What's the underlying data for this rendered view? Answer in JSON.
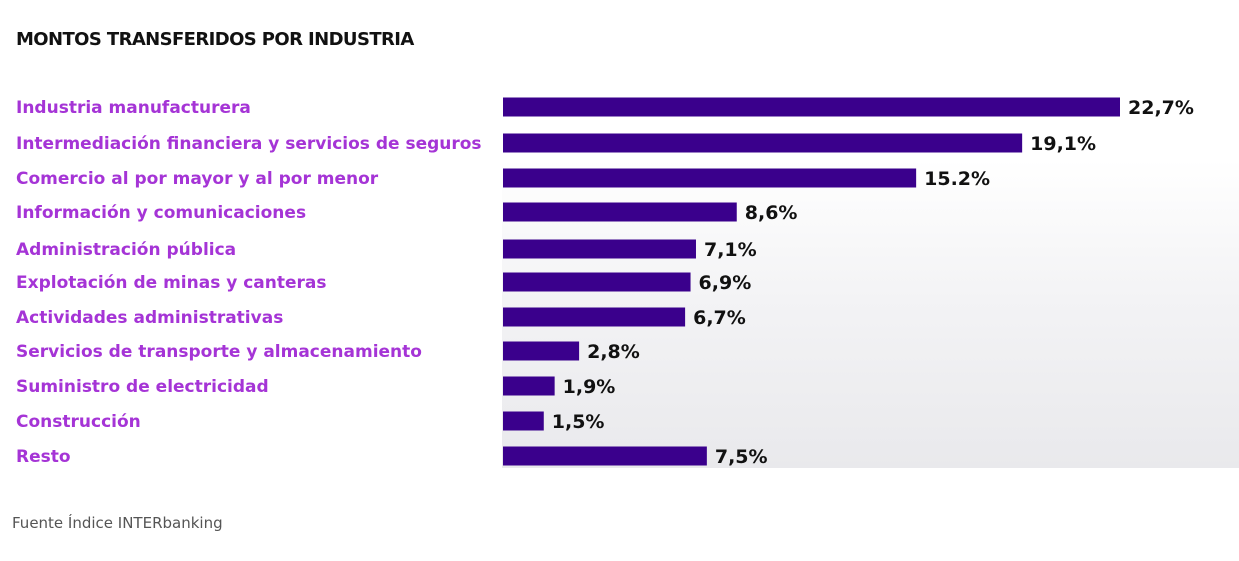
{
  "chart_data": {
    "type": "bar",
    "orientation": "horizontal",
    "title": "MONTOS TRANSFERIDOS POR INDUSTRIA",
    "categories": [
      "Industria manufacturera",
      "Intermediación financiera y servicios de seguros",
      "Comercio al por mayor y al por menor",
      "Información y comunicaciones",
      "Administración pública",
      "Explotación de minas y canteras",
      "Actividades administrativas",
      "Servicios de transporte y almacenamiento",
      "Suministro de electricidad",
      "Construcción",
      "Resto"
    ],
    "values": [
      22.7,
      19.1,
      15.2,
      8.6,
      7.1,
      6.9,
      6.7,
      2.8,
      1.9,
      1.5,
      7.5
    ],
    "value_labels": [
      "22,7%",
      "19,1%",
      "15.2%",
      "8,6%",
      "7,1%",
      "6,9%",
      "6,7%",
      "2,8%",
      "1,9%",
      "1,5%",
      "7,5%"
    ],
    "bar_color": "#3a008c",
    "label_color": "#a534d6",
    "grid": false,
    "legend": "none"
  },
  "footer": {
    "source": "Fuente Índice INTERbanking"
  }
}
